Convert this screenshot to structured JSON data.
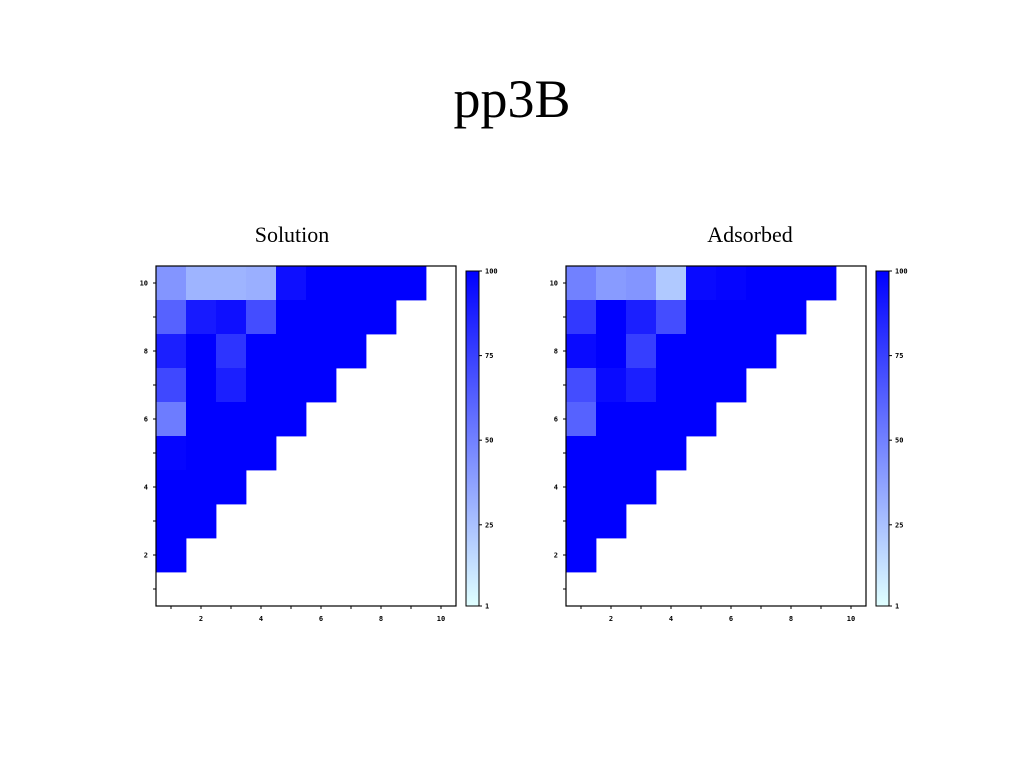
{
  "slide": {
    "title": "pp3B"
  },
  "colorbar": {
    "ticks": [
      1,
      25,
      50,
      75,
      100
    ],
    "min": 1,
    "max": 100,
    "low_color": "#e0ffff",
    "high_color": "#0000ff"
  },
  "chart_data": [
    {
      "type": "heatmap",
      "title": "Solution",
      "xlabel": "",
      "ylabel": "",
      "xlim": [
        0.5,
        10.5
      ],
      "ylim": [
        0.5,
        10.5
      ],
      "x_ticks": [
        2,
        4,
        6,
        8,
        10
      ],
      "y_ticks": [
        2,
        4,
        6,
        8,
        10
      ],
      "rows": [
        {
          "y": 10,
          "x_start": 1,
          "values": [
            42,
            30,
            30,
            32,
            94,
            100,
            100,
            100,
            100
          ]
        },
        {
          "y": 9,
          "x_start": 1,
          "values": [
            62,
            90,
            94,
            70,
            100,
            100,
            100,
            100
          ]
        },
        {
          "y": 8,
          "x_start": 1,
          "values": [
            88,
            100,
            80,
            100,
            100,
            100,
            100
          ]
        },
        {
          "y": 7,
          "x_start": 1,
          "values": [
            72,
            100,
            88,
            100,
            100,
            100
          ]
        },
        {
          "y": 6,
          "x_start": 1,
          "values": [
            52,
            100,
            100,
            100,
            100
          ]
        },
        {
          "y": 5,
          "x_start": 1,
          "values": [
            98,
            100,
            100,
            100
          ]
        },
        {
          "y": 4,
          "x_start": 1,
          "values": [
            100,
            100,
            100
          ]
        },
        {
          "y": 3,
          "x_start": 1,
          "values": [
            100,
            100
          ]
        },
        {
          "y": 2,
          "x_start": 1,
          "values": [
            100
          ]
        }
      ]
    },
    {
      "type": "heatmap",
      "title": "Adsorbed",
      "xlabel": "",
      "ylabel": "",
      "xlim": [
        0.5,
        10.5
      ],
      "ylim": [
        0.5,
        10.5
      ],
      "x_ticks": [
        2,
        4,
        6,
        8,
        10
      ],
      "y_ticks": [
        2,
        4,
        6,
        8,
        10
      ],
      "rows": [
        {
          "y": 10,
          "x_start": 1,
          "values": [
            50,
            40,
            42,
            22,
            96,
            98,
            100,
            100,
            100
          ]
        },
        {
          "y": 9,
          "x_start": 1,
          "values": [
            78,
            100,
            88,
            70,
            100,
            100,
            100,
            100
          ]
        },
        {
          "y": 8,
          "x_start": 1,
          "values": [
            96,
            100,
            76,
            100,
            100,
            100,
            100
          ]
        },
        {
          "y": 7,
          "x_start": 1,
          "values": [
            70,
            96,
            88,
            100,
            100,
            100
          ]
        },
        {
          "y": 6,
          "x_start": 1,
          "values": [
            62,
            100,
            100,
            100,
            100
          ]
        },
        {
          "y": 5,
          "x_start": 1,
          "values": [
            100,
            100,
            100,
            100
          ]
        },
        {
          "y": 4,
          "x_start": 1,
          "values": [
            100,
            100,
            100
          ]
        },
        {
          "y": 3,
          "x_start": 1,
          "values": [
            100,
            100
          ]
        },
        {
          "y": 2,
          "x_start": 1,
          "values": [
            100
          ]
        }
      ]
    }
  ]
}
